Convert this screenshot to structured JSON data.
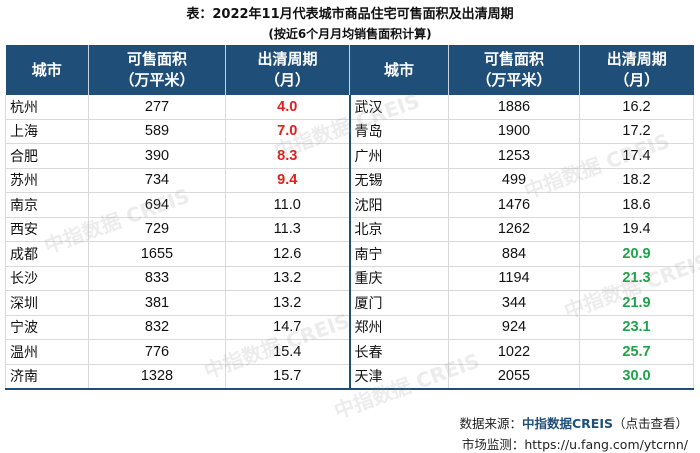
{
  "title": "表：2022年11月代表城市商品住宅可售面积及出清周期",
  "subtitle": "(按近6个月月均销售面积计算)",
  "headers": {
    "city": "城市",
    "area_line1": "可售面积",
    "area_line2": "（万平米）",
    "cycle_line1": "出清周期",
    "cycle_line2": "（月）"
  },
  "rows_left": [
    {
      "city": "杭州",
      "area": "277",
      "cycle": "4.0",
      "hl": "red"
    },
    {
      "city": "上海",
      "area": "589",
      "cycle": "7.0",
      "hl": "red"
    },
    {
      "city": "合肥",
      "area": "390",
      "cycle": "8.3",
      "hl": "red"
    },
    {
      "city": "苏州",
      "area": "734",
      "cycle": "9.4",
      "hl": "red"
    },
    {
      "city": "南京",
      "area": "694",
      "cycle": "11.0",
      "hl": ""
    },
    {
      "city": "西安",
      "area": "729",
      "cycle": "11.3",
      "hl": ""
    },
    {
      "city": "成都",
      "area": "1655",
      "cycle": "12.6",
      "hl": ""
    },
    {
      "city": "长沙",
      "area": "833",
      "cycle": "13.2",
      "hl": ""
    },
    {
      "city": "深圳",
      "area": "381",
      "cycle": "13.2",
      "hl": ""
    },
    {
      "city": "宁波",
      "area": "832",
      "cycle": "14.7",
      "hl": ""
    },
    {
      "city": "温州",
      "area": "776",
      "cycle": "15.4",
      "hl": ""
    },
    {
      "city": "济南",
      "area": "1328",
      "cycle": "15.7",
      "hl": ""
    }
  ],
  "rows_right": [
    {
      "city": "武汉",
      "area": "1886",
      "cycle": "16.2",
      "hl": ""
    },
    {
      "city": "青岛",
      "area": "1900",
      "cycle": "17.2",
      "hl": ""
    },
    {
      "city": "广州",
      "area": "1253",
      "cycle": "17.4",
      "hl": ""
    },
    {
      "city": "无锡",
      "area": "499",
      "cycle": "18.2",
      "hl": ""
    },
    {
      "city": "沈阳",
      "area": "1476",
      "cycle": "18.6",
      "hl": ""
    },
    {
      "city": "北京",
      "area": "1262",
      "cycle": "19.4",
      "hl": ""
    },
    {
      "city": "南宁",
      "area": "884",
      "cycle": "20.9",
      "hl": "green"
    },
    {
      "city": "重庆",
      "area": "1194",
      "cycle": "21.3",
      "hl": "green"
    },
    {
      "city": "厦门",
      "area": "344",
      "cycle": "21.9",
      "hl": "green"
    },
    {
      "city": "郑州",
      "area": "924",
      "cycle": "23.1",
      "hl": "green"
    },
    {
      "city": "长春",
      "area": "1022",
      "cycle": "25.7",
      "hl": "green"
    },
    {
      "city": "天津",
      "area": "2055",
      "cycle": "30.0",
      "hl": "green"
    }
  ],
  "colors": {
    "header_bg": "#1f4e79",
    "short_cycle": "#e0201b",
    "long_cycle": "#1ea34a"
  },
  "watermark_text": "中指数据 CREIS",
  "source": {
    "label": "数据来源：",
    "brand": "中指数据CREIS",
    "note": "（点击查看）"
  },
  "monitor": {
    "label": "市场监测：",
    "url": "https://u.fang.com/ytcrnn/"
  }
}
